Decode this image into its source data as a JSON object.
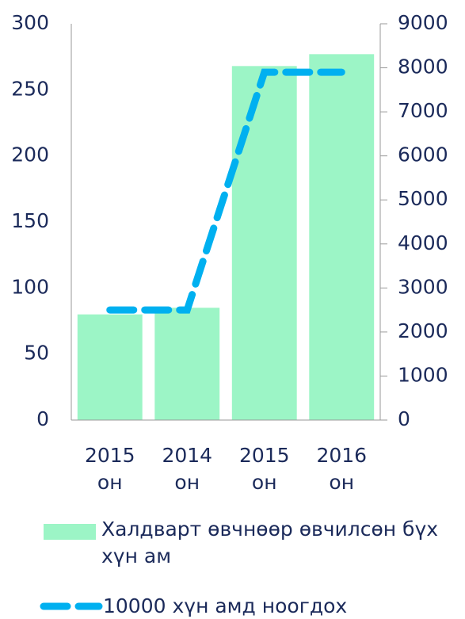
{
  "chart_data": {
    "type": "bar",
    "categories": [
      "2015 он",
      "2014 он",
      "2015 он",
      "2016 он"
    ],
    "series": [
      {
        "name": "Халдварт өвчнөөр өвчилсөн бүх хүн ам",
        "type": "bar",
        "color": "#9cf5c6",
        "values": [
          80,
          85,
          268,
          277
        ]
      },
      {
        "name": "10000 хүн амд ноогдох",
        "type": "line",
        "axis": "y2",
        "color": "#00b0f0",
        "values": [
          2500,
          2500,
          7900,
          7900
        ]
      }
    ],
    "ylim": [
      0,
      300
    ],
    "yticks": [
      0,
      50,
      100,
      150,
      200,
      250,
      300
    ],
    "y2lim": [
      0,
      9000
    ],
    "y2ticks": [
      0,
      1000,
      2000,
      3000,
      4000,
      5000,
      6000,
      7000,
      8000,
      9000
    ],
    "grid": false,
    "legend": "bottom"
  }
}
